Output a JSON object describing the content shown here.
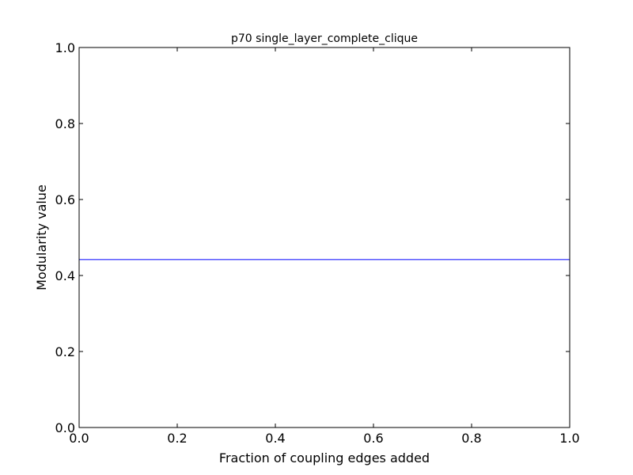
{
  "chart_data": {
    "type": "line",
    "title": "p70 single_layer_complete_clique",
    "xlabel": "Fraction of coupling edges added",
    "ylabel": "Modularity value",
    "xlim": [
      0.0,
      1.0
    ],
    "ylim": [
      0.0,
      1.0
    ],
    "xticks": [
      "0.0",
      "0.2",
      "0.4",
      "0.6",
      "0.8",
      "1.0"
    ],
    "yticks": [
      "0.0",
      "0.2",
      "0.4",
      "0.6",
      "0.8",
      "1.0"
    ],
    "grid": false,
    "series": [
      {
        "color": "#0000ff",
        "x": [
          0.0,
          1.0
        ],
        "y": [
          0.442,
          0.442
        ]
      }
    ]
  }
}
